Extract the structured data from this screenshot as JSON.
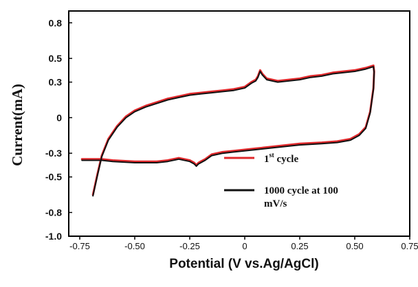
{
  "chart_data": {
    "type": "line",
    "title": "",
    "xlabel": "Potential (V vs.Ag/AgCl)",
    "ylabel": "Current(mA)",
    "xlim": [
      -0.8,
      0.75
    ],
    "ylim": [
      -1.0,
      0.9
    ],
    "x_ticks": [
      "-0.75",
      "-0.50",
      "-0.25",
      "0",
      "0.25",
      "0.50",
      "0.75"
    ],
    "x_tick_values": [
      -0.75,
      -0.5,
      -0.25,
      0,
      0.25,
      0.5,
      0.75
    ],
    "y_ticks": [
      "0.8",
      "0.5",
      "0.3",
      "0",
      "-0.3",
      "-0.5",
      "-0.8",
      "-1.0"
    ],
    "y_tick_values": [
      0.8,
      0.5,
      0.3,
      0,
      -0.3,
      -0.5,
      -0.8,
      -1.0
    ],
    "grid": false,
    "legend_position": "inside-lower-right",
    "series": [
      {
        "name": "1st cycle",
        "name_main": "1",
        "name_sup": "st",
        "name_rest": " cycle",
        "color": "#e0282b",
        "x": [
          -0.69,
          -0.67,
          -0.65,
          -0.62,
          -0.58,
          -0.54,
          -0.5,
          -0.45,
          -0.4,
          -0.35,
          -0.3,
          -0.25,
          -0.2,
          -0.15,
          -0.1,
          -0.05,
          0.0,
          0.03,
          0.05,
          0.06,
          0.07,
          0.08,
          0.1,
          0.15,
          0.2,
          0.25,
          0.3,
          0.35,
          0.4,
          0.45,
          0.5,
          0.55,
          0.585,
          0.588,
          0.585,
          0.57,
          0.55,
          0.52,
          0.48,
          0.42,
          0.35,
          0.25,
          0.15,
          0.05,
          -0.05,
          -0.1,
          -0.15,
          -0.18,
          -0.2,
          -0.21,
          -0.22,
          -0.23,
          -0.25,
          -0.3,
          -0.35,
          -0.4,
          -0.5,
          -0.6,
          -0.65,
          -0.7,
          -0.74
        ],
        "y": [
          -0.65,
          -0.48,
          -0.32,
          -0.18,
          -0.07,
          0.01,
          0.06,
          0.1,
          0.13,
          0.16,
          0.18,
          0.2,
          0.21,
          0.22,
          0.23,
          0.24,
          0.26,
          0.3,
          0.32,
          0.35,
          0.4,
          0.37,
          0.33,
          0.31,
          0.32,
          0.33,
          0.35,
          0.36,
          0.38,
          0.39,
          0.4,
          0.42,
          0.44,
          0.39,
          0.25,
          0.05,
          -0.08,
          -0.14,
          -0.18,
          -0.2,
          -0.21,
          -0.22,
          -0.24,
          -0.26,
          -0.28,
          -0.29,
          -0.31,
          -0.35,
          -0.37,
          -0.38,
          -0.4,
          -0.38,
          -0.36,
          -0.34,
          -0.36,
          -0.37,
          -0.37,
          -0.36,
          -0.35,
          -0.35,
          -0.35
        ]
      },
      {
        "name": "1000 cycle at 100 mV/s",
        "name_line1": "1000 cycle at 100",
        "name_line2": "mV/s",
        "color": "#111111",
        "x": [
          -0.69,
          -0.67,
          -0.65,
          -0.62,
          -0.58,
          -0.54,
          -0.5,
          -0.45,
          -0.4,
          -0.35,
          -0.3,
          -0.25,
          -0.2,
          -0.15,
          -0.1,
          -0.05,
          0.0,
          0.03,
          0.05,
          0.06,
          0.07,
          0.08,
          0.1,
          0.15,
          0.2,
          0.25,
          0.3,
          0.35,
          0.4,
          0.45,
          0.5,
          0.55,
          0.585,
          0.588,
          0.585,
          0.57,
          0.55,
          0.52,
          0.48,
          0.42,
          0.35,
          0.25,
          0.15,
          0.05,
          -0.05,
          -0.1,
          -0.15,
          -0.18,
          -0.2,
          -0.21,
          -0.22,
          -0.23,
          -0.25,
          -0.3,
          -0.35,
          -0.4,
          -0.5,
          -0.6,
          -0.65,
          -0.7,
          -0.74
        ],
        "y": [
          -0.66,
          -0.49,
          -0.33,
          -0.19,
          -0.08,
          0.0,
          0.05,
          0.09,
          0.12,
          0.15,
          0.17,
          0.19,
          0.2,
          0.21,
          0.22,
          0.23,
          0.25,
          0.29,
          0.31,
          0.34,
          0.39,
          0.36,
          0.32,
          0.3,
          0.31,
          0.32,
          0.34,
          0.35,
          0.37,
          0.38,
          0.39,
          0.41,
          0.43,
          0.38,
          0.24,
          0.04,
          -0.09,
          -0.15,
          -0.19,
          -0.21,
          -0.22,
          -0.23,
          -0.25,
          -0.27,
          -0.29,
          -0.3,
          -0.32,
          -0.36,
          -0.38,
          -0.39,
          -0.41,
          -0.39,
          -0.37,
          -0.35,
          -0.37,
          -0.38,
          -0.38,
          -0.37,
          -0.36,
          -0.36,
          -0.36
        ]
      }
    ]
  }
}
